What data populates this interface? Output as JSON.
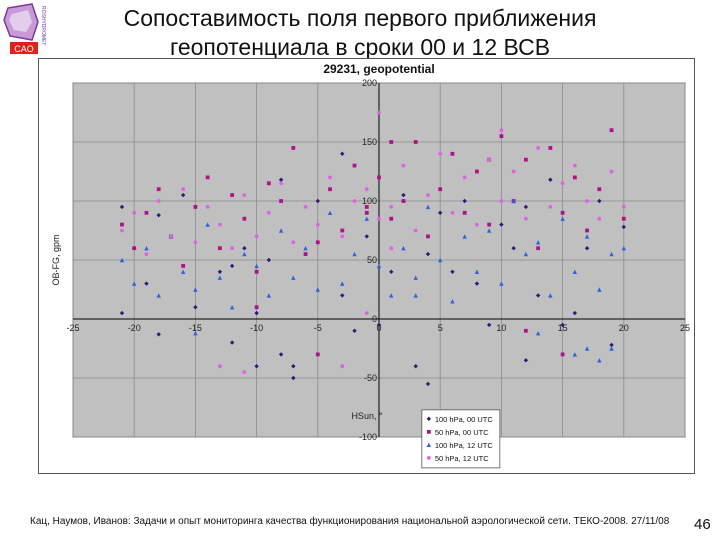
{
  "slide": {
    "title_line1": "Сопоставимость поля первого приближения",
    "title_line2": "геопотенциала в сроки 00 и 12 ВСВ",
    "footer": "Кац, Наумов, Иванов: Задачи и опыт мониторинга качества функционирования национальной аэрологической сети. ТЕКО-2008. 27/11/08",
    "page_number": "46",
    "logo_text": "CAO",
    "logo_side_text": "ROSHYDROMET"
  },
  "chart_data": {
    "type": "scatter",
    "title": "29231, geopotential",
    "xlabel": "HSun, °",
    "ylabel": "OB-FG, gpm",
    "xlim": [
      -25,
      25
    ],
    "ylim": [
      -100,
      200
    ],
    "xticks": [
      -25,
      -20,
      -15,
      -10,
      -5,
      0,
      5,
      10,
      15,
      20,
      25
    ],
    "yticks": [
      -100,
      -50,
      0,
      50,
      100,
      150,
      200
    ],
    "grid": true,
    "plot_background": "#c0c0c0",
    "legend_position": "bottom-center",
    "series": [
      {
        "name": "100 hPa, 00 UTC",
        "marker": "diamond",
        "color": "#2a1a7a",
        "x": [
          -21,
          -21,
          -20,
          -19,
          -18,
          -17,
          -16,
          -15,
          -13,
          -12,
          -12,
          -11,
          -10,
          -9,
          -8,
          -8,
          -7,
          -5,
          -3,
          -2,
          -1,
          0,
          1,
          2,
          3,
          4,
          5,
          6,
          7,
          8,
          9,
          10,
          11,
          12,
          13,
          14,
          15,
          16,
          17,
          18,
          19,
          20,
          -7,
          -18,
          -3,
          -10,
          4,
          12
        ],
        "y": [
          5,
          95,
          60,
          30,
          88,
          70,
          105,
          10,
          40,
          45,
          -20,
          60,
          5,
          50,
          -30,
          118,
          -40,
          100,
          20,
          -10,
          70,
          -5,
          40,
          105,
          -40,
          55,
          90,
          40,
          100,
          30,
          -5,
          80,
          60,
          95,
          20,
          118,
          -5,
          5,
          60,
          100,
          -22,
          78,
          -50,
          -13,
          140,
          -40,
          -55,
          -35
        ]
      },
      {
        "name": "50 hPa, 00 UTC",
        "marker": "square",
        "color": "#b0108a",
        "x": [
          -21,
          -20,
          -19,
          -18,
          -17,
          -16,
          -15,
          -14,
          -13,
          -12,
          -11,
          -10,
          -9,
          -8,
          -7,
          -6,
          -5,
          -4,
          -3,
          -2,
          -1,
          0,
          1,
          2,
          3,
          4,
          5,
          6,
          7,
          8,
          9,
          10,
          11,
          12,
          13,
          14,
          15,
          16,
          17,
          18,
          19,
          20,
          -10,
          -5,
          -1,
          1,
          9,
          12,
          15
        ],
        "y": [
          80,
          60,
          90,
          110,
          70,
          45,
          95,
          120,
          60,
          105,
          85,
          40,
          115,
          100,
          145,
          55,
          65,
          110,
          75,
          130,
          95,
          120,
          85,
          100,
          150,
          70,
          110,
          140,
          90,
          125,
          80,
          155,
          100,
          135,
          60,
          145,
          90,
          120,
          75,
          110,
          160,
          85,
          10,
          -30,
          90,
          150,
          135,
          -10,
          -30
        ]
      },
      {
        "name": "100 hPa, 12 UTC",
        "marker": "triangle",
        "color": "#3060e0",
        "x": [
          -21,
          -20,
          -19,
          -18,
          -17,
          -16,
          -15,
          -14,
          -13,
          -12,
          -11,
          -10,
          -9,
          -8,
          -7,
          -6,
          -5,
          -4,
          -3,
          -2,
          -1,
          0,
          1,
          2,
          3,
          4,
          5,
          6,
          7,
          8,
          9,
          10,
          11,
          12,
          13,
          14,
          15,
          16,
          17,
          18,
          19,
          20,
          -15,
          3,
          13,
          16,
          17,
          18,
          19
        ],
        "y": [
          50,
          30,
          60,
          20,
          70,
          40,
          25,
          80,
          35,
          10,
          55,
          45,
          20,
          75,
          35,
          60,
          25,
          90,
          30,
          55,
          85,
          45,
          20,
          60,
          35,
          95,
          50,
          15,
          70,
          40,
          75,
          30,
          100,
          55,
          65,
          20,
          85,
          40,
          70,
          25,
          55,
          60,
          -12,
          20,
          -12,
          -30,
          -25,
          -35,
          -25
        ]
      },
      {
        "name": "50 hPa, 12 UTC",
        "marker": "circle",
        "color": "#e060e8",
        "x": [
          -21,
          -20,
          -19,
          -18,
          -17,
          -16,
          -15,
          -14,
          -13,
          -12,
          -11,
          -10,
          -9,
          -8,
          -7,
          -6,
          -5,
          -4,
          -3,
          -2,
          -1,
          0,
          1,
          2,
          3,
          4,
          5,
          6,
          7,
          8,
          9,
          10,
          11,
          12,
          13,
          14,
          15,
          16,
          17,
          18,
          19,
          20,
          -13,
          -11,
          -3,
          -1,
          0,
          1,
          10
        ],
        "y": [
          75,
          90,
          55,
          100,
          70,
          110,
          65,
          95,
          80,
          60,
          105,
          70,
          90,
          115,
          65,
          95,
          80,
          120,
          70,
          100,
          110,
          85,
          95,
          130,
          75,
          105,
          140,
          90,
          120,
          80,
          135,
          100,
          125,
          85,
          145,
          95,
          115,
          130,
          100,
          85,
          125,
          95,
          -40,
          -45,
          -40,
          5,
          175,
          60,
          160
        ]
      }
    ]
  }
}
